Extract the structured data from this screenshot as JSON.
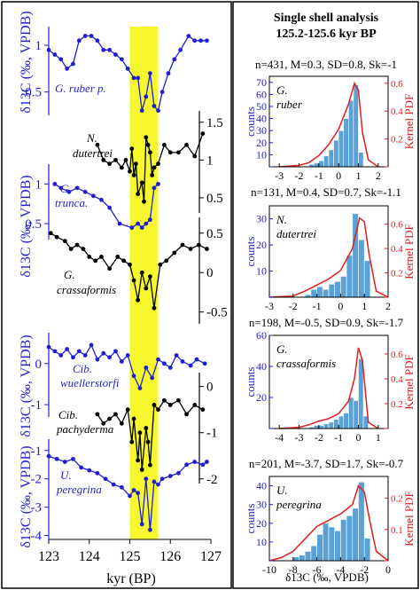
{
  "colors": {
    "blue": "#1f1fd1",
    "black": "#000000",
    "red": "#e11d1d",
    "hist": "#5aa2d6",
    "highlight": "#f7f72e"
  },
  "left": {
    "xlabel": "kyr (BP)",
    "xticks": [
      "123",
      "124",
      "125",
      "126",
      "127"
    ],
    "ylabels": [
      "δ13C (‰, VPDB)",
      "δ13C (‰, VPDB)",
      "δ13C (‰, VPDB)",
      "δ13C (‰, VPDB)"
    ],
    "yticks": {
      "ruber": [
        "1",
        "0.5"
      ],
      "dutertrei": [
        "1.5",
        "1",
        "0.5"
      ],
      "trunca": [
        "1",
        "0.5"
      ],
      "crassaformis": [
        "0.5",
        "0",
        "-0.5"
      ],
      "wuellerstorfi": [
        "0",
        "-1"
      ],
      "pachyderma": [
        "0",
        "-1",
        "-2"
      ],
      "peregrina": [
        "-1",
        "-2",
        "-3",
        "-4"
      ]
    },
    "species": {
      "ruber": "G. ruber p.",
      "dutertrei_1": "N.",
      "dutertrei_2": "dutertrei",
      "trunca_1": "G.",
      "trunca_2": "trunca.",
      "crassa_1": "G.",
      "crassa_2": "crassaformis",
      "wuell_1": "Cib.",
      "wuell_2": "wuellerstorfi",
      "pachy_1": "Cib.",
      "pachy_2": "pachyderma",
      "pereg_1": "U.",
      "pereg_2": "peregrina"
    }
  },
  "right": {
    "title_1": "Single shell analysis",
    "title_2": "125.2-125.6 kyr BP",
    "stats": [
      "n=431, M=0.3, SD=0.8, Sk=-1",
      "n=131, M=0.4, SD=0.7, Sk=-1.1",
      "n=198, M=-0.5, SD=0.9, Sk=-1.7",
      "n=201, M=-3.7, SD=1.7, Sk=-0.7"
    ],
    "counts_label": "counts",
    "pdf_label": "Kernel PDF",
    "xlabel": "δ13C (‰, VPDB)",
    "species": [
      [
        "G.",
        "ruber"
      ],
      [
        "N.",
        "dutertrei"
      ],
      [
        "G.",
        "crassaformis"
      ],
      [
        "U.",
        "peregrina"
      ]
    ]
  },
  "chart_data": [
    {
      "type": "line",
      "title": "",
      "xlabel": "kyr (BP)",
      "ylabel": "δ13C (‰, VPDB)",
      "xlim": [
        123,
        127
      ],
      "highlight_x": [
        125.0,
        125.7
      ],
      "series": [
        {
          "name": "G. ruber p.",
          "axis": "left",
          "ylim": [
            0.25,
            1.2
          ],
          "x": [
            123.0,
            123.15,
            123.3,
            123.45,
            123.6,
            123.75,
            123.9,
            124.05,
            124.2,
            124.35,
            124.5,
            124.65,
            124.8,
            124.95,
            125.1,
            125.2,
            125.3,
            125.4,
            125.5,
            125.6,
            125.7,
            125.8,
            125.95,
            126.1,
            126.25,
            126.45,
            126.6,
            126.75,
            126.9
          ],
          "y": [
            0.95,
            0.9,
            0.85,
            0.75,
            0.8,
            1.05,
            1.1,
            1.1,
            1.05,
            0.95,
            0.95,
            0.9,
            0.85,
            0.75,
            0.65,
            0.65,
            0.3,
            0.45,
            0.7,
            0.35,
            0.3,
            0.5,
            0.7,
            0.85,
            0.95,
            1.1,
            1.05,
            1.05,
            1.05
          ]
        },
        {
          "name": "N. dutertrei",
          "axis": "right",
          "ylim": [
            0.3,
            1.65
          ],
          "x": [
            124.2,
            124.35,
            124.5,
            124.65,
            124.8,
            124.9,
            125.0,
            125.05,
            125.1,
            125.15,
            125.2,
            125.3,
            125.35,
            125.4,
            125.45,
            125.5,
            125.55,
            125.6,
            125.7,
            125.85,
            126.0,
            126.2,
            126.4,
            126.6,
            126.8
          ],
          "y": [
            1.2,
            1.0,
            0.95,
            1.0,
            0.9,
            1.0,
            0.85,
            1.15,
            0.8,
            0.95,
            0.55,
            0.7,
            0.45,
            1.3,
            1.2,
            1.1,
            0.8,
            0.9,
            0.95,
            1.2,
            1.1,
            1.1,
            1.2,
            1.05,
            1.35
          ]
        },
        {
          "name": "G. trunca.",
          "axis": "left",
          "ylim": [
            0.3,
            1.25
          ],
          "x": [
            123.15,
            123.3,
            123.5,
            123.7,
            123.9,
            124.1,
            124.3,
            124.5,
            124.75,
            125.05,
            125.2,
            125.3,
            125.4,
            125.5,
            125.6,
            125.7
          ],
          "y": [
            1.0,
            0.95,
            0.9,
            0.95,
            0.9,
            0.85,
            0.8,
            0.7,
            0.5,
            0.45,
            0.5,
            0.45,
            0.5,
            0.55,
            0.95,
            1.0
          ]
        },
        {
          "name": "G. crassaformis",
          "axis": "right",
          "ylim": [
            -0.65,
            0.7
          ],
          "x": [
            123.05,
            123.2,
            123.4,
            123.55,
            123.7,
            123.85,
            124.0,
            124.15,
            124.3,
            124.5,
            124.7,
            124.85,
            125.0,
            125.1,
            125.2,
            125.3,
            125.4,
            125.5,
            125.6,
            125.75,
            125.9,
            126.1,
            126.3,
            126.5,
            126.7,
            126.9
          ],
          "y": [
            0.5,
            0.45,
            0.4,
            0.3,
            0.35,
            0.3,
            0.2,
            0.15,
            0.2,
            0.05,
            0.2,
            0.15,
            0.1,
            -0.1,
            -0.35,
            0.0,
            -0.2,
            -0.05,
            -0.45,
            0.1,
            0.15,
            0.25,
            0.35,
            0.3,
            0.35,
            0.3
          ]
        },
        {
          "name": "Cib. wuellerstorfi",
          "axis": "left",
          "ylim": [
            -1.3,
            0.75
          ],
          "x": [
            123.0,
            123.15,
            123.3,
            123.45,
            123.6,
            123.75,
            123.9,
            124.05,
            124.2,
            124.35,
            124.5,
            124.65,
            124.8,
            124.95,
            125.1,
            125.25,
            125.4,
            125.55,
            125.7,
            125.85,
            126.0,
            126.15,
            126.3,
            126.5,
            126.65,
            126.85
          ],
          "y": [
            0.4,
            0.3,
            0.2,
            0.35,
            0.15,
            0.3,
            0.2,
            0.45,
            0.1,
            0.25,
            0.15,
            0.3,
            0.05,
            0.2,
            -0.3,
            -0.6,
            -0.1,
            -0.35,
            0.1,
            0.0,
            -0.1,
            0.2,
            0.05,
            -0.05,
            0.1,
            0.0
          ]
        },
        {
          "name": "Cib. pachyderma",
          "axis": "right",
          "ylim": [
            -2.1,
            0.3
          ],
          "x": [
            124.2,
            124.35,
            124.5,
            124.65,
            124.8,
            124.95,
            125.05,
            125.1,
            125.2,
            125.25,
            125.3,
            125.4,
            125.45,
            125.5,
            125.6,
            125.7,
            125.85,
            126.0,
            126.2,
            126.4,
            126.6,
            126.8
          ],
          "y": [
            -0.6,
            -0.8,
            -0.7,
            -0.6,
            -0.8,
            -0.5,
            -1.2,
            -0.7,
            -1.6,
            -1.0,
            -1.8,
            -0.9,
            -1.2,
            -1.7,
            -0.4,
            -0.5,
            -0.3,
            -0.4,
            -0.3,
            -0.6,
            -0.4,
            -0.5
          ]
        },
        {
          "name": "U. peregrina",
          "axis": "left",
          "ylim": [
            -4.2,
            -0.6
          ],
          "x": [
            123.0,
            123.2,
            123.4,
            123.6,
            123.8,
            124.0,
            124.2,
            124.4,
            124.6,
            124.8,
            125.0,
            125.1,
            125.2,
            125.3,
            125.4,
            125.5,
            125.6,
            125.7,
            125.8,
            126.0,
            126.2,
            126.4,
            126.6,
            126.8,
            126.9
          ],
          "y": [
            -1.2,
            -1.3,
            -1.4,
            -1.3,
            -1.6,
            -1.7,
            -1.8,
            -2.0,
            -2.2,
            -2.3,
            -2.6,
            -2.4,
            -2.5,
            -3.6,
            -2.0,
            -3.8,
            -2.1,
            -2.2,
            -2.0,
            -1.9,
            -1.8,
            -1.5,
            -1.4,
            -1.5,
            -1.4
          ]
        }
      ]
    },
    {
      "type": "bar",
      "title": "G. ruber",
      "xlabel": "",
      "ylabel": "counts",
      "xlim": [
        -3.5,
        2.5
      ],
      "ylim": [
        0,
        75
      ],
      "y2lim": [
        0,
        0.65
      ],
      "bins": [
        -1.5,
        -1.25,
        -1.0,
        -0.75,
        -0.5,
        -0.25,
        0.0,
        0.25,
        0.5,
        0.75,
        1.0
      ],
      "values": [
        2,
        3,
        5,
        9,
        14,
        22,
        30,
        40,
        55,
        68,
        12
      ],
      "kde_x": [
        -3,
        -2,
        -1.5,
        -1,
        -0.5,
        0,
        0.5,
        0.8,
        1,
        1.2,
        1.5,
        2
      ],
      "kde_y": [
        0,
        0.01,
        0.03,
        0.08,
        0.16,
        0.27,
        0.45,
        0.6,
        0.55,
        0.25,
        0.05,
        0
      ]
    },
    {
      "type": "bar",
      "title": "N. dutertrei",
      "xlabel": "",
      "ylabel": "counts",
      "xlim": [
        -3.0,
        2.0
      ],
      "ylim": [
        0,
        35
      ],
      "y2lim": [
        0,
        0.75
      ],
      "bins": [
        -1.5,
        -1.25,
        -1.0,
        -0.75,
        -0.5,
        -0.25,
        0.0,
        0.25,
        0.5,
        0.75,
        1.0
      ],
      "values": [
        1,
        3,
        4,
        3,
        5,
        6,
        8,
        16,
        32,
        22,
        14
      ],
      "kde_x": [
        -3,
        -2,
        -1.5,
        -1,
        -0.5,
        0,
        0.5,
        0.8,
        1,
        1.2,
        1.5,
        2
      ],
      "kde_y": [
        0,
        0.01,
        0.05,
        0.1,
        0.15,
        0.22,
        0.4,
        0.65,
        0.62,
        0.35,
        0.05,
        0
      ]
    },
    {
      "type": "bar",
      "title": "G. crassaformis",
      "xlabel": "",
      "ylabel": "counts",
      "xlim": [
        -4.5,
        1.5
      ],
      "ylim": [
        0,
        60
      ],
      "y2lim": [
        0,
        0.75
      ],
      "bins": [
        -2.5,
        -2.25,
        -2.0,
        -1.75,
        -1.5,
        -1.25,
        -1.0,
        -0.75,
        -0.5,
        -0.25,
        0.0,
        0.25
      ],
      "values": [
        1,
        2,
        2,
        3,
        4,
        6,
        8,
        10,
        20,
        18,
        45,
        8
      ],
      "kde_x": [
        -4,
        -3,
        -2.5,
        -2,
        -1.5,
        -1,
        -0.5,
        -0.2,
        0,
        0.2,
        0.5,
        1
      ],
      "kde_y": [
        0,
        0.01,
        0.03,
        0.06,
        0.08,
        0.12,
        0.22,
        0.4,
        0.65,
        0.55,
        0.05,
        0
      ]
    },
    {
      "type": "bar",
      "title": "U. peregrina",
      "xlabel": "δ13C (‰, VPDB)",
      "ylabel": "counts",
      "xlim": [
        -10,
        0
      ],
      "ylim": [
        0,
        45
      ],
      "y2lim": [
        0,
        0.27
      ],
      "bins": [
        -8,
        -7.5,
        -7,
        -6.5,
        -6,
        -5.5,
        -5,
        -4.5,
        -4,
        -3.5,
        -3,
        -2.5,
        -2
      ],
      "values": [
        2,
        3,
        5,
        8,
        14,
        20,
        18,
        16,
        22,
        24,
        28,
        42,
        12
      ],
      "kde_x": [
        -10,
        -9,
        -8,
        -7,
        -6,
        -5,
        -4,
        -3,
        -2.5,
        -2,
        -1.5,
        -1,
        0
      ],
      "kde_y": [
        0,
        0.01,
        0.03,
        0.07,
        0.11,
        0.13,
        0.15,
        0.18,
        0.24,
        0.22,
        0.12,
        0.03,
        0
      ]
    }
  ]
}
